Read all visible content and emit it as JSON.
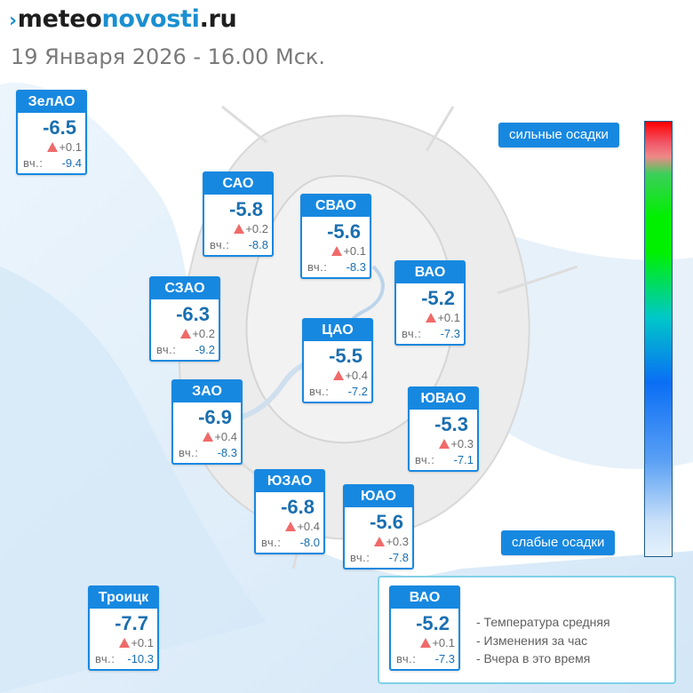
{
  "header": {
    "logo_mark": "›",
    "logo_meteo": "meteo",
    "logo_novosti": "novosti",
    "logo_ru": ".ru",
    "datetime": "19 Января 2026 - 16.00 Мск."
  },
  "yesterday_label": "вч.:",
  "districts": [
    {
      "id": "zelao",
      "name": "ЗелАО",
      "temp": "-6.5",
      "delta": "+0.1",
      "yesterday": "-9.4"
    },
    {
      "id": "sao",
      "name": "САО",
      "temp": "-5.8",
      "delta": "+0.2",
      "yesterday": "-8.8"
    },
    {
      "id": "svao",
      "name": "СВАО",
      "temp": "-5.6",
      "delta": "+0.1",
      "yesterday": "-8.3"
    },
    {
      "id": "vao",
      "name": "ВАО",
      "temp": "-5.2",
      "delta": "+0.1",
      "yesterday": "-7.3"
    },
    {
      "id": "szao",
      "name": "СЗАО",
      "temp": "-6.3",
      "delta": "+0.2",
      "yesterday": "-9.2"
    },
    {
      "id": "cao",
      "name": "ЦАО",
      "temp": "-5.5",
      "delta": "+0.4",
      "yesterday": "-7.2"
    },
    {
      "id": "zao",
      "name": "ЗАО",
      "temp": "-6.9",
      "delta": "+0.4",
      "yesterday": "-8.3"
    },
    {
      "id": "yuvao",
      "name": "ЮВАО",
      "temp": "-5.3",
      "delta": "+0.3",
      "yesterday": "-7.1"
    },
    {
      "id": "yuzao",
      "name": "ЮЗАО",
      "temp": "-6.8",
      "delta": "+0.4",
      "yesterday": "-8.0"
    },
    {
      "id": "yuao",
      "name": "ЮАО",
      "temp": "-5.6",
      "delta": "+0.3",
      "yesterday": "-7.8"
    },
    {
      "id": "troitsk",
      "name": "Троицк",
      "temp": "-7.7",
      "delta": "+0.1",
      "yesterday": "-10.3"
    }
  ],
  "precip_scale": {
    "top_label": "сильные осадки",
    "bottom_label": "слабые осадки",
    "colors": {
      "high": "#ff0000",
      "mid": "#00f000",
      "low": "#e6f2fc"
    }
  },
  "legend": {
    "example": {
      "name": "ВАО",
      "temp": "-5.2",
      "delta": "+0.1",
      "yesterday": "-7.3"
    },
    "lines": [
      "- Температура средняя",
      "- Изменения за час",
      "- Вчера в это время"
    ]
  },
  "colors": {
    "accent": "#1788e0",
    "temp_text": "#1a6fb0",
    "delta_arrow": "#f06a6a"
  }
}
